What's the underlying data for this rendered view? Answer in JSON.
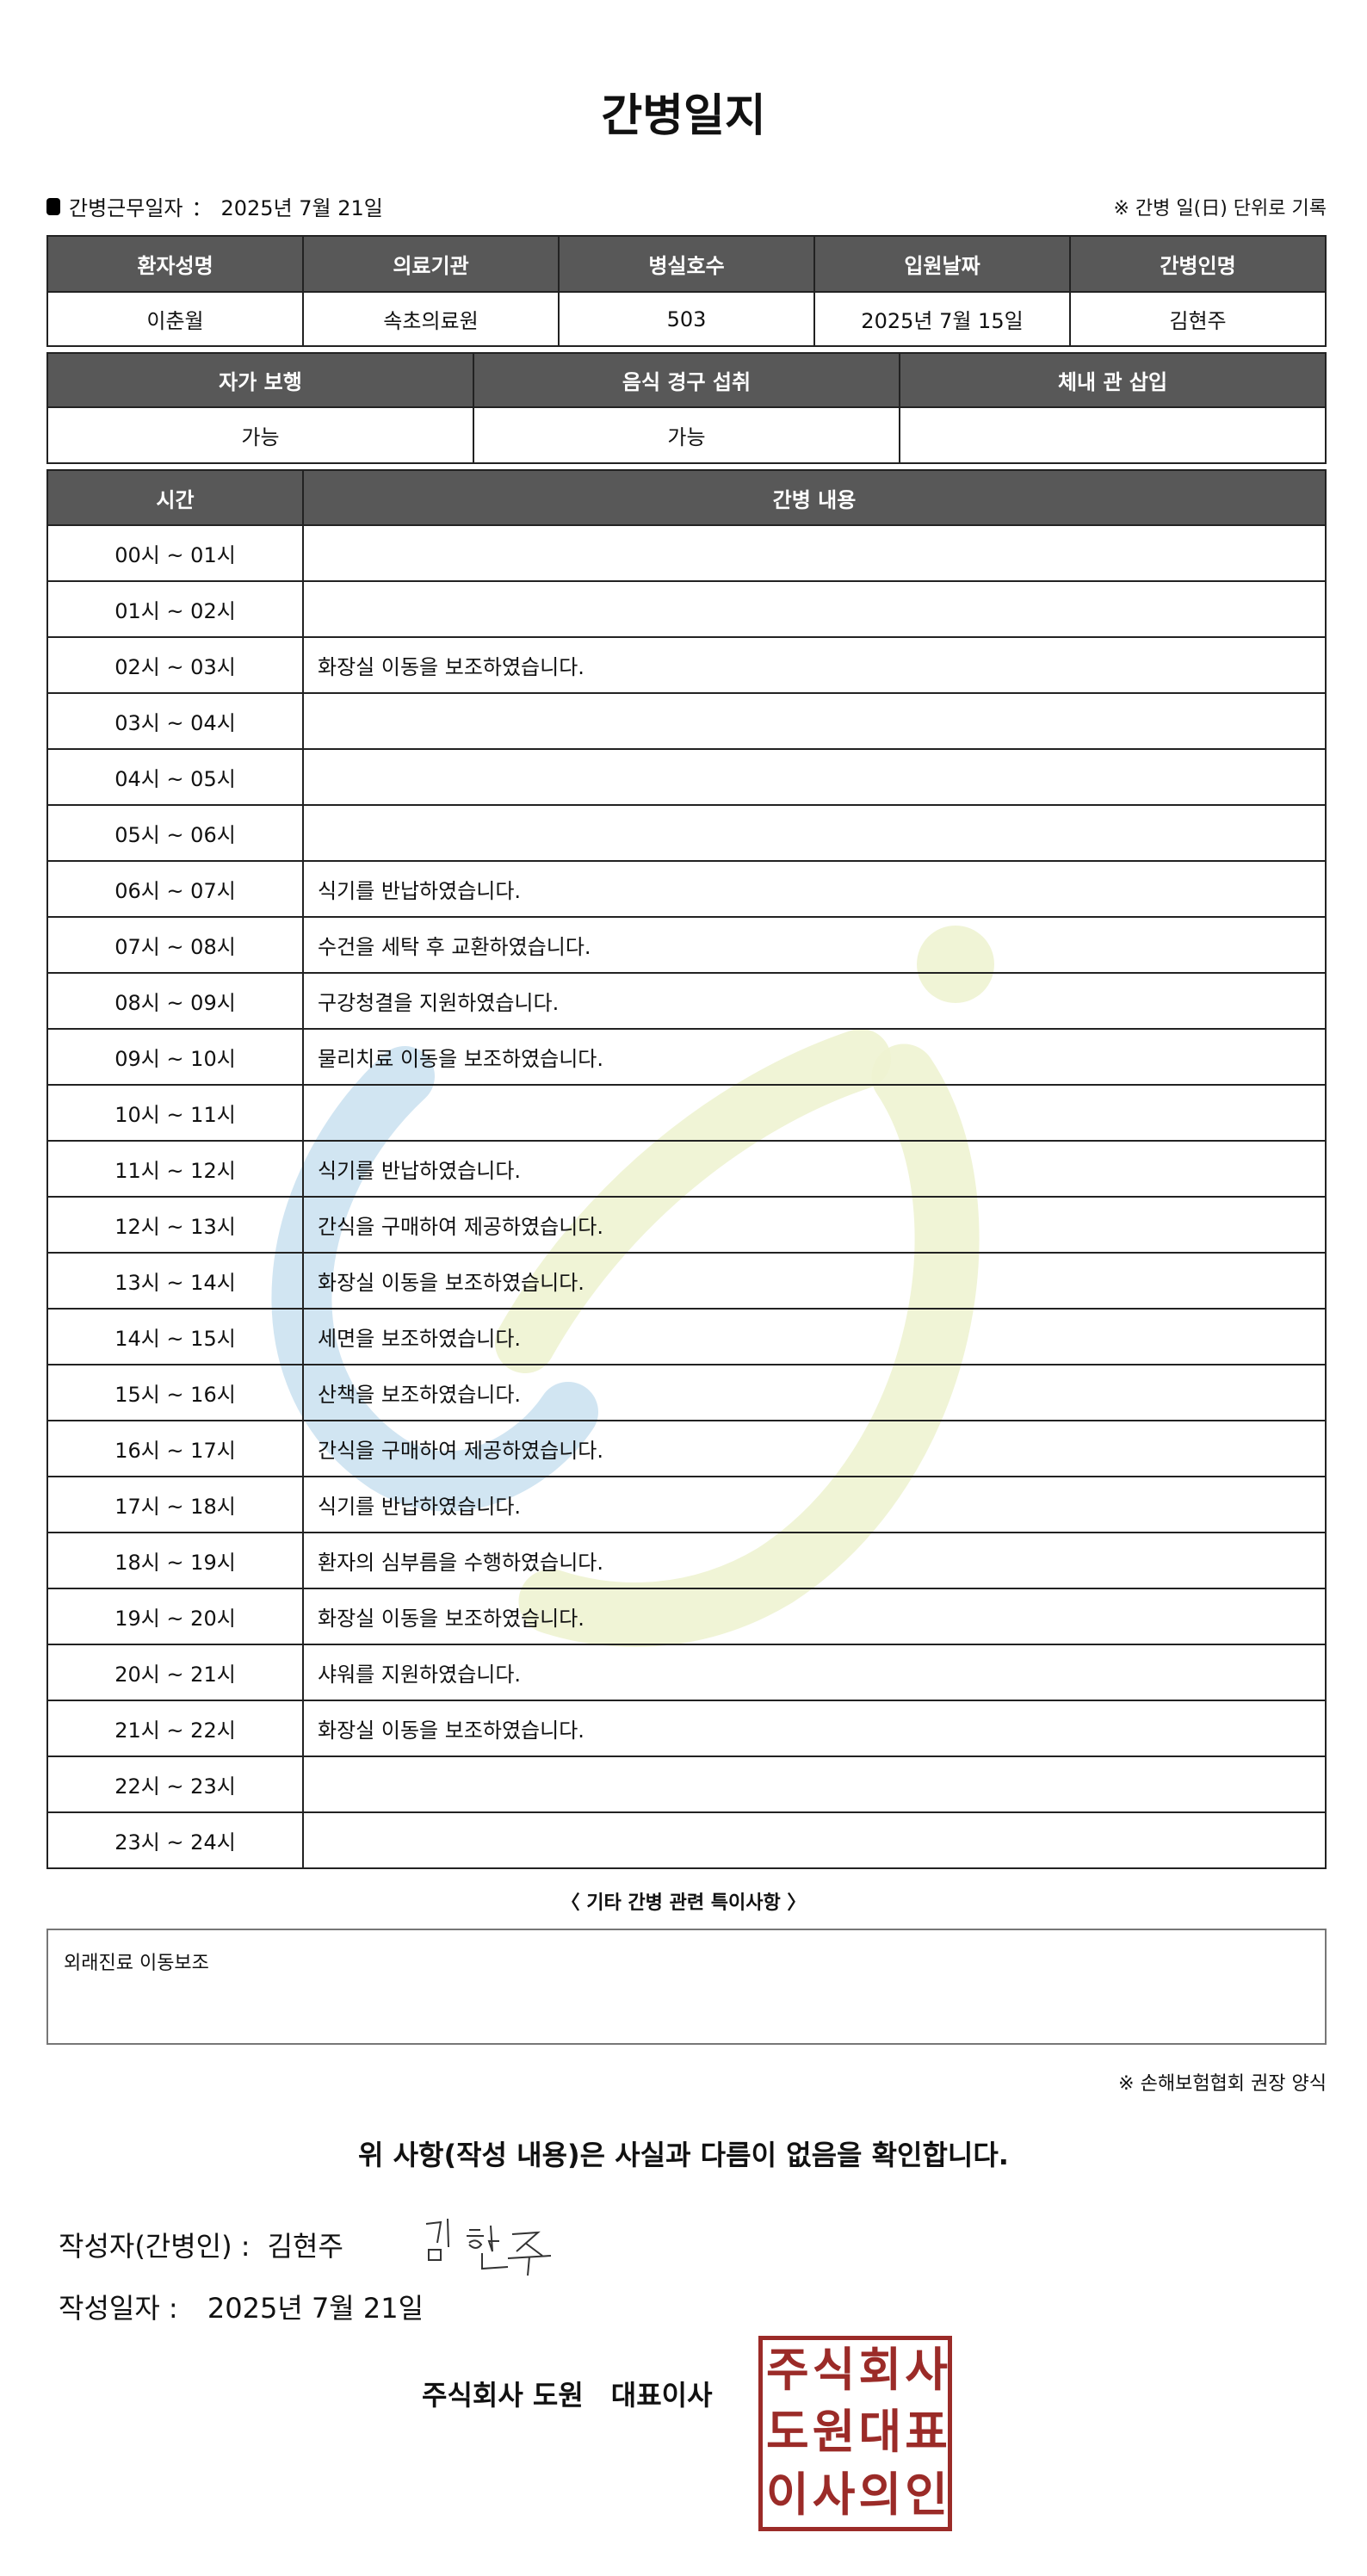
{
  "title": "간병일지",
  "info": {
    "label": "간병근무일자",
    "sep": "：",
    "date": "2025년 7월 21일",
    "note": "※ 간병 일(日) 단위로 기록"
  },
  "patient_table": {
    "headers": [
      "환자성명",
      "의료기관",
      "병실호수",
      "입원날짜",
      "간병인명"
    ],
    "values": [
      "이춘월",
      "속초의료원",
      "503",
      "2025년 7월 15일",
      "김현주"
    ]
  },
  "status_table": {
    "headers": [
      "자가 보행",
      "음식 경구 섭취",
      "체내 관 삽입"
    ],
    "values": [
      "가능",
      "가능",
      ""
    ]
  },
  "log_table": {
    "headers": [
      "시간",
      "간병 내용"
    ],
    "rows": [
      {
        "time": "00시 ~ 01시",
        "content": ""
      },
      {
        "time": "01시 ~ 02시",
        "content": ""
      },
      {
        "time": "02시 ~ 03시",
        "content": "화장실 이동을 보조하였습니다."
      },
      {
        "time": "03시 ~ 04시",
        "content": ""
      },
      {
        "time": "04시 ~ 05시",
        "content": ""
      },
      {
        "time": "05시 ~ 06시",
        "content": ""
      },
      {
        "time": "06시 ~ 07시",
        "content": "식기를 반납하였습니다."
      },
      {
        "time": "07시 ~ 08시",
        "content": "수건을 세탁 후 교환하였습니다."
      },
      {
        "time": "08시 ~ 09시",
        "content": "구강청결을 지원하였습니다."
      },
      {
        "time": "09시 ~ 10시",
        "content": "물리치료 이동을 보조하였습니다."
      },
      {
        "time": "10시 ~ 11시",
        "content": ""
      },
      {
        "time": "11시 ~ 12시",
        "content": "식기를 반납하였습니다."
      },
      {
        "time": "12시 ~ 13시",
        "content": "간식을 구매하여 제공하였습니다."
      },
      {
        "time": "13시 ~ 14시",
        "content": "화장실 이동을 보조하였습니다."
      },
      {
        "time": "14시 ~ 15시",
        "content": "세면을 보조하였습니다."
      },
      {
        "time": "15시 ~ 16시",
        "content": "산책을 보조하였습니다."
      },
      {
        "time": "16시 ~ 17시",
        "content": "간식을 구매하여 제공하였습니다."
      },
      {
        "time": "17시 ~ 18시",
        "content": "식기를 반납하였습니다."
      },
      {
        "time": "18시 ~ 19시",
        "content": "환자의 심부름을 수행하였습니다."
      },
      {
        "time": "19시 ~ 20시",
        "content": "화장실 이동을 보조하였습니다."
      },
      {
        "time": "20시 ~ 21시",
        "content": "샤워를 지원하였습니다."
      },
      {
        "time": "21시 ~ 22시",
        "content": "화장실 이동을 보조하였습니다."
      },
      {
        "time": "22시 ~ 23시",
        "content": ""
      },
      {
        "time": "23시 ~ 24시",
        "content": ""
      }
    ]
  },
  "special": {
    "title": "〈 기타 간병 관련 특이사항 〉",
    "content": "외래진료 이동보조"
  },
  "form_note": "※ 손해보험협회 권장 양식",
  "confirm": "위 사항(작성 내용)은 사실과 다름이 없음을 확인합니다.",
  "author": {
    "label": "작성자(간병인) :",
    "name": "김현주",
    "signature": "김현주"
  },
  "written_date": {
    "label": "작성일자 :",
    "value": "2025년 7월 21일"
  },
  "company": "주식회사 도원　대표이사",
  "seal": {
    "text": "주식회사도원대표이사의인",
    "color": "#9b2b28"
  },
  "colors": {
    "header_bg": "#585858",
    "watermark_blue": "#c9e0f0",
    "watermark_green": "#eef3d2"
  }
}
